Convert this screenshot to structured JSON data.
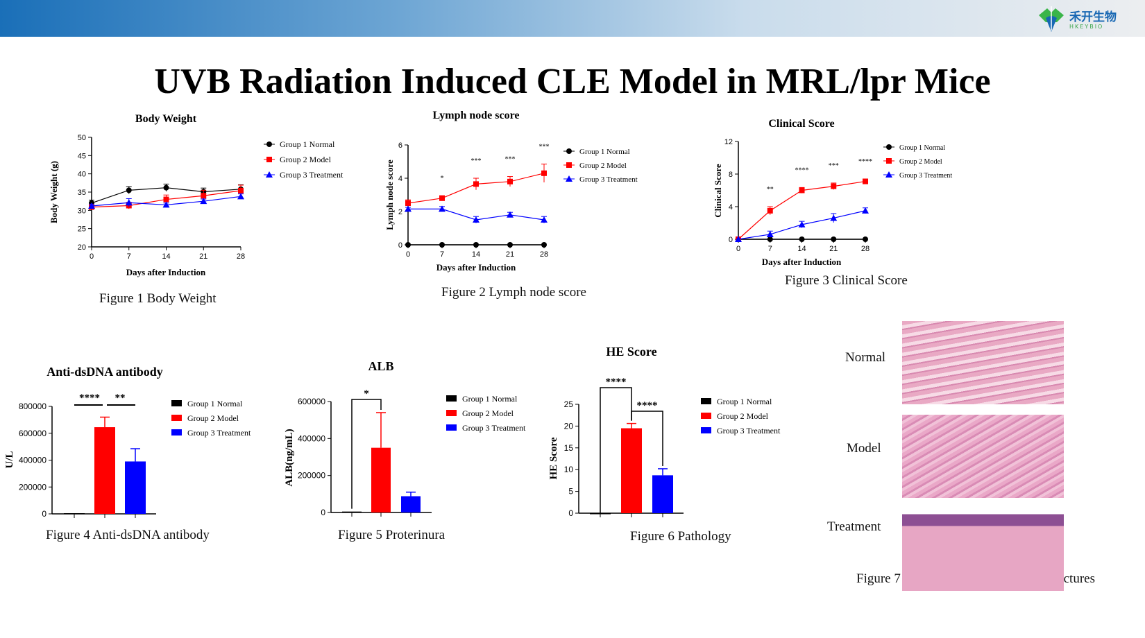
{
  "header": {
    "logo_text": "禾开生物",
    "logo_sub": "HKEYBIO",
    "title": "UVB Radiation Induced CLE Model in MRL/lpr Mice"
  },
  "legend": [
    "Group 1 Normal",
    "Group 2 Model",
    "Group 3 Treatment"
  ],
  "colors": {
    "g1": "#000000",
    "g2": "#ff0000",
    "g3": "#0000ff"
  },
  "captions": [
    "Figure 1 Body Weight",
    "Figure 2 Lymph node score",
    "Figure 3 Clinical Score",
    "Figure 4 Anti-dsDNA antibody",
    "Figure 5 Proterinura",
    "Figure 6 Pathology",
    "Figure 7 Typical skin histopathology pictures"
  ],
  "histology": {
    "labels": [
      "Normal",
      "Model",
      "Treatment"
    ]
  },
  "chart_data": [
    {
      "type": "line",
      "title": "Body  Weight",
      "xlabel": "Days after Induction",
      "ylabel": "Body Weight (g)",
      "x": [
        0,
        7,
        14,
        21,
        28
      ],
      "ylim": [
        20,
        50
      ],
      "yticks": [
        20,
        25,
        30,
        35,
        40,
        45,
        50
      ],
      "series": [
        {
          "name": "Group 1 Normal",
          "values": [
            32,
            35.5,
            36.2,
            35.1,
            35.8
          ],
          "err": [
            0.8,
            1,
            1,
            1,
            1.2
          ],
          "marker": "circle"
        },
        {
          "name": "Group 2 Model",
          "values": [
            30.9,
            31.3,
            33,
            34,
            35.4
          ],
          "err": [
            0.6,
            0.9,
            1.2,
            1.5,
            1.5
          ],
          "marker": "square"
        },
        {
          "name": "Group 3 Treatment",
          "values": [
            31.2,
            32.1,
            31.5,
            32.5,
            33.8
          ],
          "err": [
            0.5,
            1.1,
            0.5,
            0.6,
            0.7
          ],
          "marker": "triangle"
        }
      ],
      "sig": [
        "",
        "",
        "",
        "",
        ""
      ]
    },
    {
      "type": "line",
      "title": "Lymph node score",
      "xlabel": "Days after Induction",
      "ylabel": "Lymph node score",
      "x": [
        0,
        7,
        14,
        21,
        28
      ],
      "ylim": [
        0,
        6
      ],
      "yticks": [
        0,
        2,
        4,
        6
      ],
      "series": [
        {
          "name": "Group 1 Normal",
          "values": [
            0,
            0,
            0,
            0,
            0
          ],
          "err": [
            0,
            0,
            0,
            0,
            0
          ],
          "marker": "circle"
        },
        {
          "name": "Group 2 Model",
          "values": [
            2.5,
            2.8,
            3.65,
            3.8,
            4.3
          ],
          "err": [
            0.2,
            0.15,
            0.35,
            0.3,
            0.55
          ],
          "marker": "square"
        },
        {
          "name": "Group 3 Treatment",
          "values": [
            2.15,
            2.15,
            1.5,
            1.8,
            1.5
          ],
          "err": [
            0.1,
            0.15,
            0.2,
            0.15,
            0.2
          ],
          "marker": "triangle"
        }
      ],
      "sig": [
        "",
        "*",
        "***",
        "***",
        "***"
      ]
    },
    {
      "type": "line",
      "title": "Clinical Score",
      "xlabel": "Days after Induction",
      "ylabel": "Clinical Score",
      "x": [
        0,
        7,
        14,
        21,
        28
      ],
      "ylim": [
        0,
        12
      ],
      "yticks": [
        0,
        4,
        8,
        12
      ],
      "series": [
        {
          "name": "Group 1 Normal",
          "values": [
            0,
            0,
            0,
            0,
            0
          ],
          "err": [
            0,
            0,
            0,
            0,
            0
          ],
          "marker": "circle"
        },
        {
          "name": "Group 2 Model",
          "values": [
            0,
            3.5,
            6,
            6.5,
            7.1
          ],
          "err": [
            0,
            0.5,
            0.35,
            0.4,
            0.3
          ],
          "marker": "square"
        },
        {
          "name": "Group 3 Treatment",
          "values": [
            0,
            0.6,
            1.8,
            2.6,
            3.5
          ],
          "err": [
            0,
            0.4,
            0.4,
            0.55,
            0.35
          ],
          "marker": "triangle"
        }
      ],
      "sig": [
        "",
        "**",
        "****",
        "***",
        "****"
      ]
    },
    {
      "type": "bar",
      "title": "Anti-dsDNA antibody",
      "ylabel": "U/L",
      "categories": [
        "Group 1 Normal",
        "Group 2 Model",
        "Group 3 Treatment"
      ],
      "values": [
        5000,
        645000,
        390000
      ],
      "err": [
        0,
        75000,
        95000
      ],
      "ylim": [
        0,
        800000
      ],
      "yticks": [
        0,
        200000,
        400000,
        600000,
        800000
      ],
      "brackets": [
        {
          "from": 0,
          "to": 1,
          "label": "****"
        },
        {
          "from": 1,
          "to": 2,
          "label": "**"
        }
      ]
    },
    {
      "type": "bar",
      "title": "ALB",
      "ylabel": "ALB(ng/mL)",
      "categories": [
        "Group 1 Normal",
        "Group 2 Model",
        "Group 3 Treatment"
      ],
      "values": [
        5000,
        350000,
        88000
      ],
      "err": [
        0,
        190000,
        22000
      ],
      "ylim": [
        0,
        600000
      ],
      "yticks": [
        0,
        200000,
        400000,
        600000
      ],
      "brackets": [
        {
          "from": 0,
          "to": 1,
          "label": "*"
        }
      ]
    },
    {
      "type": "bar",
      "title": "HE Score",
      "ylabel": "HE Score",
      "categories": [
        "Group 1 Normal",
        "Group 2 Model",
        "Group 3 Treatment"
      ],
      "values": [
        0,
        19.5,
        8.7
      ],
      "err": [
        0,
        1.1,
        1.5
      ],
      "ylim": [
        0,
        25
      ],
      "yticks": [
        0,
        5,
        10,
        15,
        20,
        25
      ],
      "brackets": [
        {
          "from": 0,
          "to": 1,
          "label": "****"
        },
        {
          "from": 1,
          "to": 2,
          "label": "****"
        }
      ]
    }
  ]
}
